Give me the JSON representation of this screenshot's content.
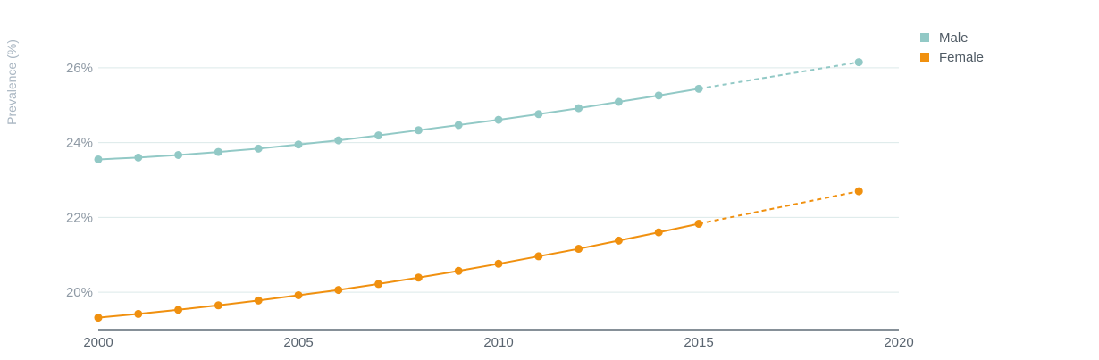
{
  "chart_data": {
    "type": "line",
    "ylabel": "Prevalence (%)",
    "xlim": [
      2000,
      2020
    ],
    "ylim": [
      19.0,
      27.0
    ],
    "x_ticks": [
      "2000",
      "2005",
      "2010",
      "2015",
      "2020"
    ],
    "y_ticks": [
      "20%",
      "22%",
      "24%",
      "26%"
    ],
    "y_tick_values": [
      20,
      22,
      24,
      26
    ],
    "grid": "horizontal",
    "legend_position": "top-right",
    "series": [
      {
        "name": "Male",
        "color": "#92c9c6",
        "x": [
          2000,
          2001,
          2002,
          2003,
          2004,
          2005,
          2006,
          2007,
          2008,
          2009,
          2010,
          2011,
          2012,
          2013,
          2014,
          2015,
          2019
        ],
        "values": [
          23.55,
          23.6,
          23.67,
          23.75,
          23.84,
          23.95,
          24.06,
          24.19,
          24.33,
          24.47,
          24.61,
          24.76,
          24.92,
          25.09,
          25.26,
          25.44,
          26.15
        ],
        "projected_from_index": 15
      },
      {
        "name": "Female",
        "color": "#f0900f",
        "x": [
          2000,
          2001,
          2002,
          2003,
          2004,
          2005,
          2006,
          2007,
          2008,
          2009,
          2010,
          2011,
          2012,
          2013,
          2014,
          2015,
          2019
        ],
        "values": [
          19.32,
          19.42,
          19.53,
          19.65,
          19.78,
          19.92,
          20.06,
          20.22,
          20.39,
          20.57,
          20.76,
          20.96,
          21.16,
          21.38,
          21.6,
          21.83,
          22.7
        ],
        "projected_from_index": 15
      }
    ]
  }
}
